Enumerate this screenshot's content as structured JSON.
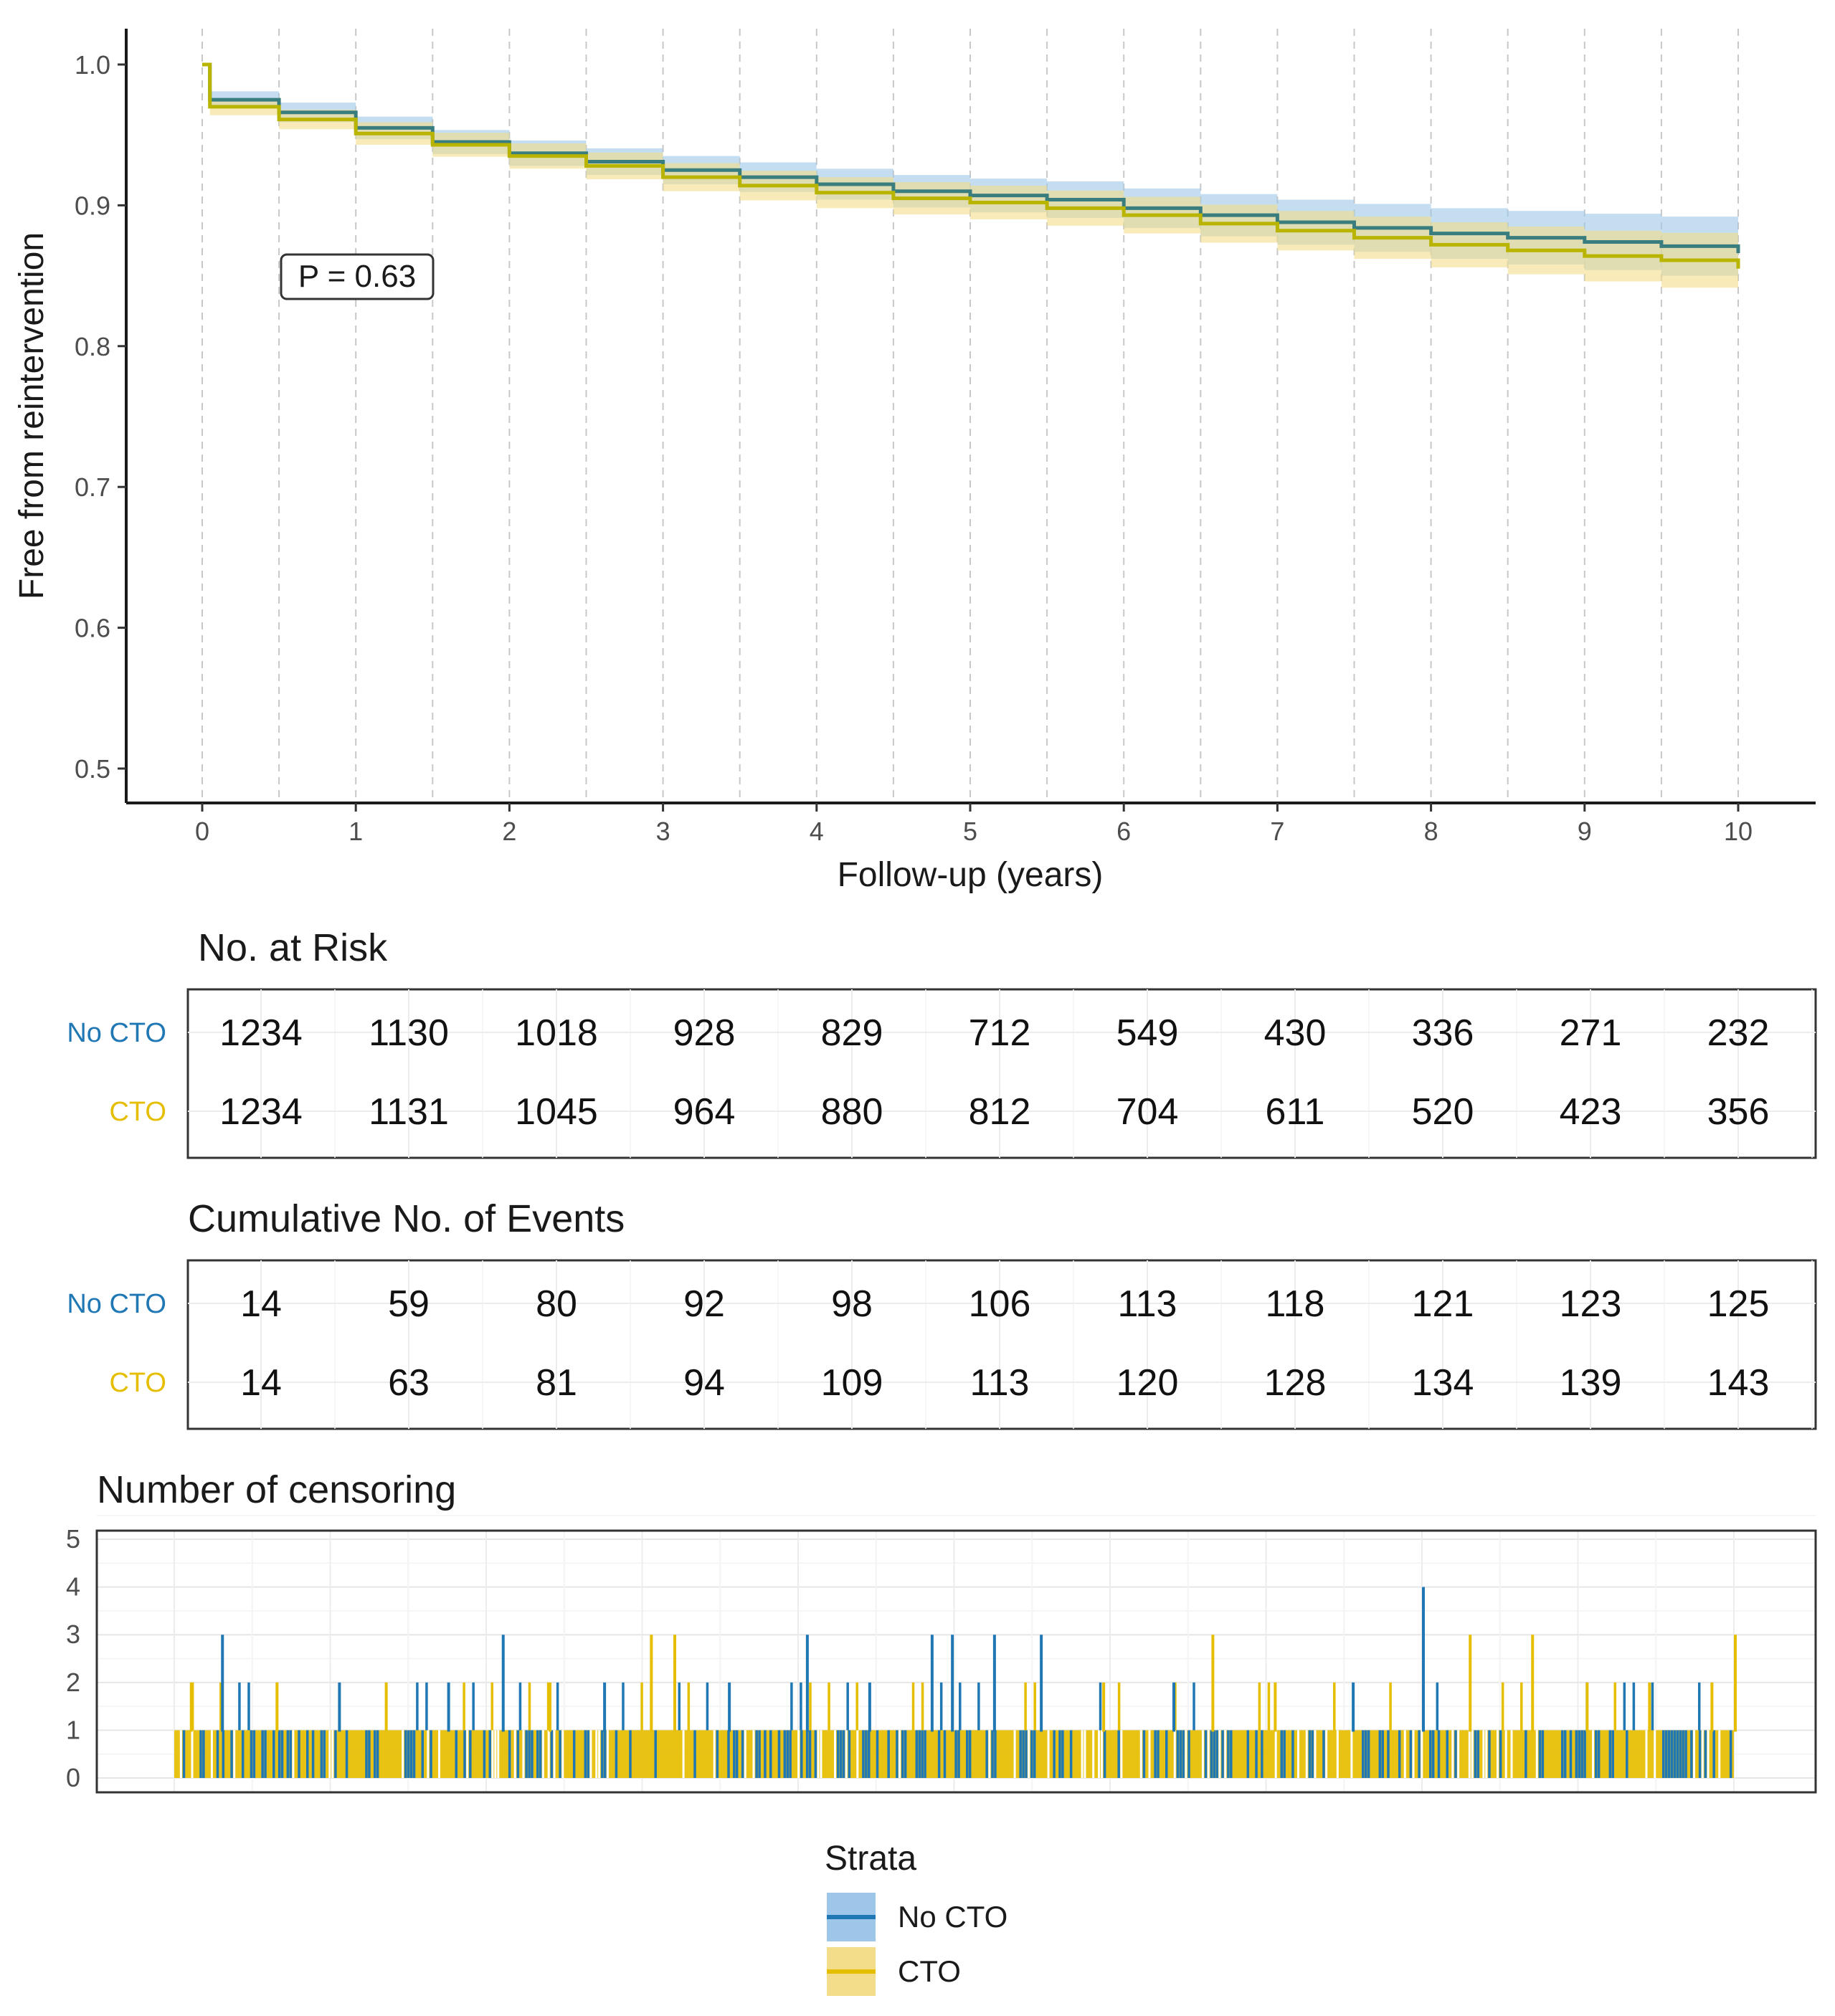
{
  "chart_data": {
    "type": "line",
    "subtype": "kaplan-meier",
    "ylabel": "Free from reintervention",
    "xlabel": "Follow-up (years)",
    "xlim": [
      0,
      10
    ],
    "ylim": [
      0.5,
      1.0
    ],
    "x_ticks": [
      "0",
      "1",
      "2",
      "3",
      "4",
      "5",
      "6",
      "7",
      "8",
      "9",
      "10"
    ],
    "y_ticks": [
      "0.5",
      "0.6",
      "0.7",
      "0.8",
      "0.9",
      "1.0"
    ],
    "p_value_label": "P = 0.63",
    "series": [
      {
        "name": "No CTO",
        "color": "#1F77B4",
        "line_color": "#3A7D7E",
        "band_color": "#9DC6E8",
        "points": [
          [
            0,
            1.0
          ],
          [
            0.05,
            0.975
          ],
          [
            0.5,
            0.966
          ],
          [
            1,
            0.955
          ],
          [
            1.5,
            0.945
          ],
          [
            2,
            0.937
          ],
          [
            2.5,
            0.931
          ],
          [
            3,
            0.925
          ],
          [
            3.5,
            0.92
          ],
          [
            4,
            0.915
          ],
          [
            4.5,
            0.91
          ],
          [
            5,
            0.907
          ],
          [
            5.5,
            0.904
          ],
          [
            6,
            0.898
          ],
          [
            6.5,
            0.893
          ],
          [
            7,
            0.888
          ],
          [
            7.5,
            0.884
          ],
          [
            8,
            0.88
          ],
          [
            8.5,
            0.877
          ],
          [
            9,
            0.874
          ],
          [
            9.5,
            0.871
          ],
          [
            10,
            0.866
          ]
        ],
        "ci_width": [
          [
            0,
            0.0
          ],
          [
            0.05,
            0.006
          ],
          [
            1,
            0.008
          ],
          [
            3,
            0.01
          ],
          [
            5,
            0.012
          ],
          [
            7,
            0.016
          ],
          [
            8,
            0.018
          ],
          [
            9,
            0.02
          ],
          [
            10,
            0.022
          ]
        ]
      },
      {
        "name": "CTO",
        "color": "#E6BE00",
        "line_color": "#B8B400",
        "band_color": "#F4DD8A",
        "points": [
          [
            0,
            1.0
          ],
          [
            0.05,
            0.97
          ],
          [
            0.5,
            0.961
          ],
          [
            1,
            0.951
          ],
          [
            1.5,
            0.943
          ],
          [
            2,
            0.935
          ],
          [
            2.5,
            0.928
          ],
          [
            3,
            0.92
          ],
          [
            3.5,
            0.914
          ],
          [
            4,
            0.909
          ],
          [
            4.5,
            0.905
          ],
          [
            5,
            0.902
          ],
          [
            5.5,
            0.898
          ],
          [
            6,
            0.893
          ],
          [
            6.5,
            0.887
          ],
          [
            7,
            0.882
          ],
          [
            7.5,
            0.877
          ],
          [
            8,
            0.872
          ],
          [
            8.5,
            0.868
          ],
          [
            9,
            0.864
          ],
          [
            9.5,
            0.861
          ],
          [
            10,
            0.855
          ]
        ],
        "ci_width": [
          [
            0,
            0.0
          ],
          [
            0.05,
            0.006
          ],
          [
            1,
            0.008
          ],
          [
            3,
            0.01
          ],
          [
            5,
            0.012
          ],
          [
            7,
            0.014
          ],
          [
            8,
            0.016
          ],
          [
            9,
            0.018
          ],
          [
            10,
            0.021
          ]
        ]
      }
    ]
  },
  "risk_table": {
    "title": "No. at Risk",
    "rows": [
      {
        "label": "No CTO",
        "color": "#1F77B4",
        "values": [
          "1234",
          "1130",
          "1018",
          "928",
          "829",
          "712",
          "549",
          "430",
          "336",
          "271",
          "232"
        ]
      },
      {
        "label": "CTO",
        "color": "#E6BE00",
        "values": [
          "1234",
          "1131",
          "1045",
          "964",
          "880",
          "812",
          "704",
          "611",
          "520",
          "423",
          "356"
        ]
      }
    ]
  },
  "events_table": {
    "title": "Cumulative No. of Events",
    "rows": [
      {
        "label": "No CTO",
        "color": "#1F77B4",
        "values": [
          "14",
          "59",
          "80",
          "92",
          "98",
          "106",
          "113",
          "118",
          "121",
          "123",
          "125"
        ]
      },
      {
        "label": "CTO",
        "color": "#E6BE00",
        "values": [
          "14",
          "63",
          "81",
          "94",
          "109",
          "113",
          "120",
          "128",
          "134",
          "139",
          "143"
        ]
      }
    ]
  },
  "censoring": {
    "title": "Number of censoring",
    "y_ticks": [
      "0",
      "1",
      "2",
      "3",
      "4",
      "5"
    ],
    "ylim": [
      0,
      5
    ],
    "peaks": [
      {
        "x": 0.1,
        "value": 2,
        "group": "CTO"
      },
      {
        "x": 0.3,
        "value": 3,
        "group": "No CTO"
      },
      {
        "x": 0.65,
        "value": 2,
        "group": "CTO"
      },
      {
        "x": 1.05,
        "value": 2,
        "group": "No CTO"
      },
      {
        "x": 1.35,
        "value": 2,
        "group": "CTO"
      },
      {
        "x": 1.75,
        "value": 2,
        "group": "No CTO"
      },
      {
        "x": 2.1,
        "value": 3,
        "group": "No CTO"
      },
      {
        "x": 2.4,
        "value": 2,
        "group": "CTO"
      },
      {
        "x": 2.75,
        "value": 2,
        "group": "No CTO"
      },
      {
        "x": 3.05,
        "value": 3,
        "group": "CTO"
      },
      {
        "x": 3.2,
        "value": 3,
        "group": "CTO"
      },
      {
        "x": 3.55,
        "value": 2,
        "group": "No CTO"
      },
      {
        "x": 4.05,
        "value": 3,
        "group": "No CTO"
      },
      {
        "x": 4.45,
        "value": 2,
        "group": "No CTO"
      },
      {
        "x": 4.85,
        "value": 3,
        "group": "No CTO"
      },
      {
        "x": 4.98,
        "value": 3,
        "group": "No CTO"
      },
      {
        "x": 5.25,
        "value": 3,
        "group": "No CTO"
      },
      {
        "x": 5.55,
        "value": 3,
        "group": "No CTO"
      },
      {
        "x": 5.95,
        "value": 2,
        "group": "CTO"
      },
      {
        "x": 6.4,
        "value": 2,
        "group": "No CTO"
      },
      {
        "x": 6.65,
        "value": 3,
        "group": "CTO"
      },
      {
        "x": 7.05,
        "value": 2,
        "group": "CTO"
      },
      {
        "x": 7.55,
        "value": 2,
        "group": "No CTO"
      },
      {
        "x": 8.0,
        "value": 4,
        "group": "No CTO"
      },
      {
        "x": 8.3,
        "value": 3,
        "group": "CTO"
      },
      {
        "x": 8.7,
        "value": 3,
        "group": "CTO"
      },
      {
        "x": 9.05,
        "value": 2,
        "group": "CTO"
      },
      {
        "x": 9.45,
        "value": 2,
        "group": "CTO"
      },
      {
        "x": 9.85,
        "value": 2,
        "group": "CTO"
      },
      {
        "x": 10.0,
        "value": 3,
        "group": "CTO"
      }
    ]
  },
  "legend": {
    "title": "Strata",
    "items": [
      {
        "label": "No CTO",
        "line": "#1F77B4",
        "fill": "#9DC6E8"
      },
      {
        "label": "CTO",
        "line": "#E6BE00",
        "fill": "#F4DD8A"
      }
    ]
  }
}
